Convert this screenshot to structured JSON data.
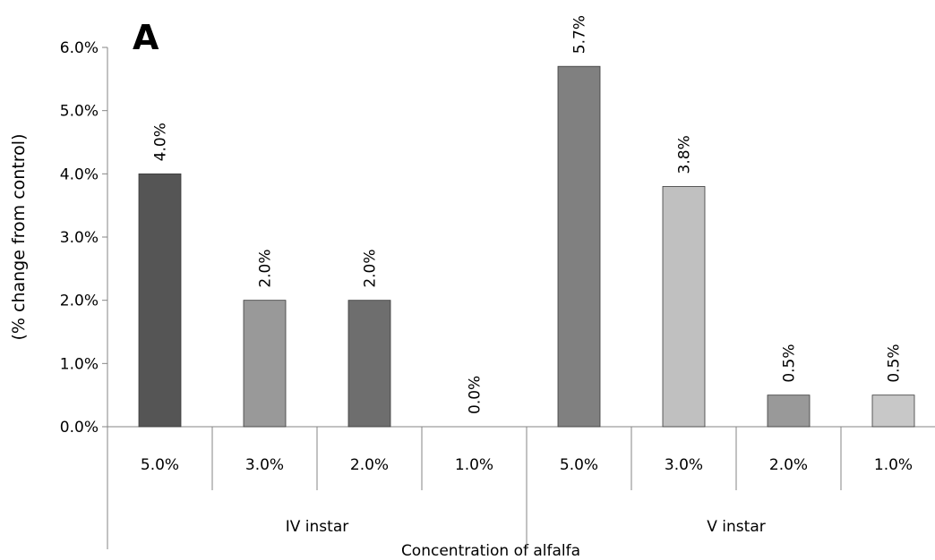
{
  "chart_data": {
    "type": "bar",
    "panel_label": "A",
    "ylabel": "(% change from control)",
    "xlabel": "Concentration of alfalfa",
    "ylim": [
      0,
      6
    ],
    "yticks": [
      "0.0%",
      "1.0%",
      "2.0%",
      "3.0%",
      "4.0%",
      "5.0%",
      "6.0%"
    ],
    "groups": [
      "IV instar",
      "V instar"
    ],
    "categories": [
      "5.0%",
      "3.0%",
      "2.0%",
      "1.0%",
      "5.0%",
      "3.0%",
      "2.0%",
      "1.0%"
    ],
    "values": [
      4.0,
      2.0,
      2.0,
      0.0,
      5.7,
      3.8,
      0.5,
      0.5
    ],
    "data_labels": [
      "4.0%",
      "2.0%",
      "2.0%",
      "0.0%",
      "5.7%",
      "3.8%",
      "0.5%",
      "0.5%"
    ],
    "bar_colors": [
      "#555555",
      "#999999",
      "#6e6e6e",
      "#bbbbbb",
      "#808080",
      "#c0c0c0",
      "#999999",
      "#c8c8c8"
    ],
    "grid": false,
    "legend": "none"
  }
}
